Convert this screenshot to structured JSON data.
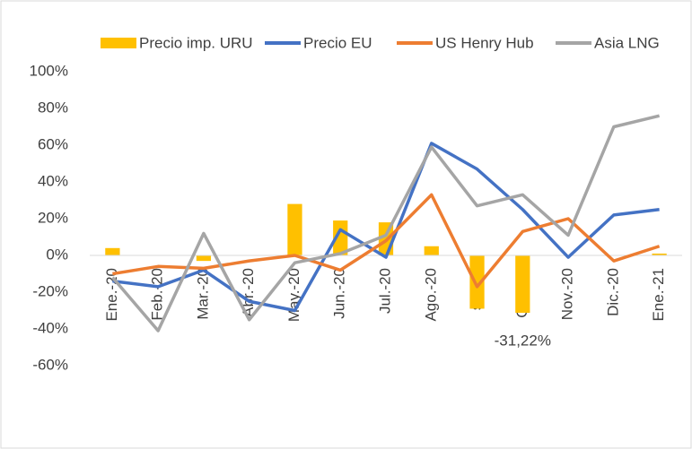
{
  "chart_data": {
    "type": "bar-line",
    "categories": [
      "Ene.-20",
      "Feb.-20",
      "Mar.-20",
      "Abr.-20",
      "May.-20",
      "Jun.-20",
      "Jul.-20",
      "Ago.-20",
      "set-20",
      "Oct.-20",
      "Nov.-20",
      "Dic.-20",
      "Ene.-21"
    ],
    "series": [
      {
        "name": "Precio imp. URU",
        "type": "bar",
        "color": "#ffc000",
        "values": [
          4,
          0,
          -3,
          0,
          28,
          19,
          18,
          5,
          -29,
          -31.22,
          0,
          0,
          1
        ],
        "value_labels": [
          null,
          null,
          null,
          null,
          null,
          null,
          null,
          null,
          null,
          "-31,22%",
          null,
          null,
          null
        ]
      },
      {
        "name": "Precio EU",
        "type": "line",
        "color": "#4472c4",
        "values": [
          -14,
          -17,
          -8,
          -25,
          -30,
          14,
          -1,
          61,
          47,
          25,
          -1,
          22,
          25
        ]
      },
      {
        "name": "US Henry Hub",
        "type": "line",
        "color": "#ed7d31",
        "values": [
          -10,
          -6,
          -7,
          -3,
          0,
          -8,
          8,
          33,
          -17,
          13,
          20,
          -3,
          5
        ]
      },
      {
        "name": "Asia LNG",
        "type": "line",
        "color": "#a5a5a5",
        "values": [
          -12,
          -41,
          12,
          -35,
          -4,
          1,
          11,
          59,
          27,
          33,
          11,
          70,
          76
        ]
      }
    ],
    "ylim": [
      -60,
      100
    ],
    "yticks": [
      {
        "value": 100,
        "label": "100%"
      },
      {
        "value": 80,
        "label": "80%"
      },
      {
        "value": 60,
        "label": "60%"
      },
      {
        "value": 40,
        "label": "40%"
      },
      {
        "value": 20,
        "label": "20%"
      },
      {
        "value": 0,
        "label": "0%"
      },
      {
        "value": -20,
        "label": "-20%"
      },
      {
        "value": -40,
        "label": "-40%"
      },
      {
        "value": -60,
        "label": "-60%"
      }
    ],
    "legend": "top"
  }
}
